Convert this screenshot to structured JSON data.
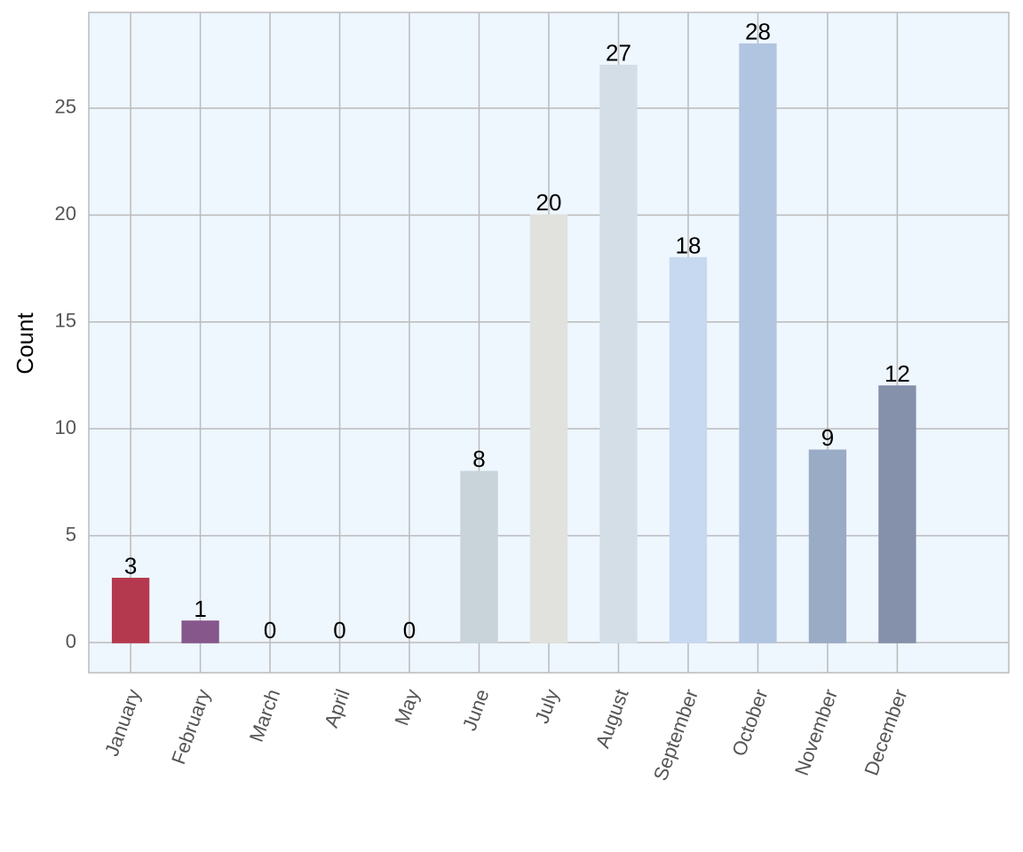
{
  "chart_data": {
    "type": "bar",
    "y_label": "Count",
    "categories": [
      "January",
      "February",
      "March",
      "April",
      "May",
      "June",
      "July",
      "August",
      "September",
      "October",
      "November",
      "December"
    ],
    "values": [
      3,
      1,
      0,
      0,
      0,
      8,
      20,
      27,
      18,
      28,
      9,
      12
    ],
    "colors": [
      "#b5394e",
      "#86578a",
      "#3c78b4",
      "#4a90c8",
      "#5ba3d0",
      "#c8d3da",
      "#e1e2de",
      "#d3dee7",
      "#c6d9f0",
      "#b1c5e0",
      "#9aabc6",
      "#8590aa"
    ],
    "ylim": [
      -1.41,
      29.48
    ],
    "yticks": [
      0,
      5,
      10,
      15,
      20,
      25
    ],
    "grid": true
  }
}
